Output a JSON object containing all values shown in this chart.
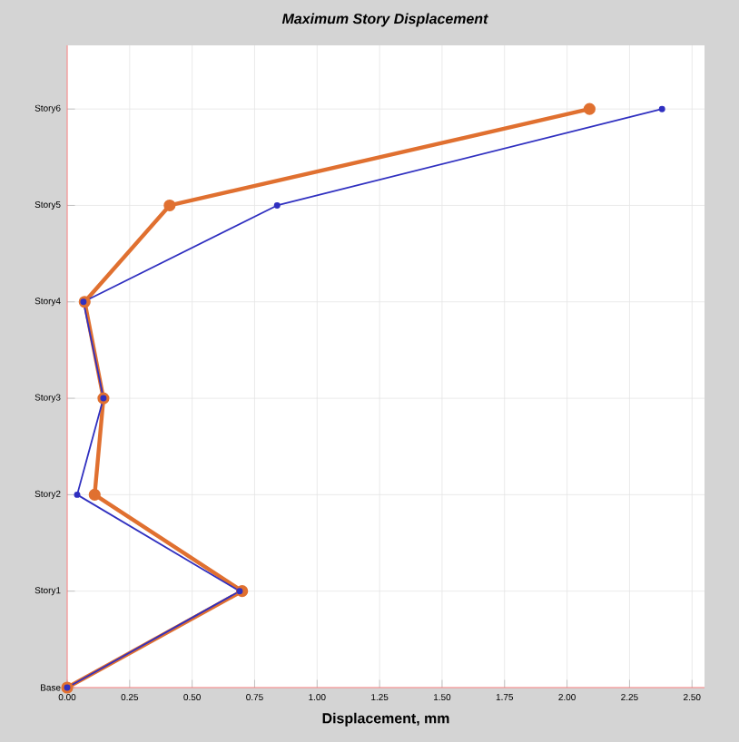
{
  "chart_data": {
    "type": "line",
    "orientation": "horizontal",
    "title": "Maximum Story Displacement",
    "xlabel": "Displacement, mm",
    "categories": [
      "Story6",
      "Story5",
      "Story4",
      "Story3",
      "Story2",
      "Story1",
      "Base"
    ],
    "series": [
      {
        "color": "#e07030",
        "values": [
          2.09,
          0.41,
          0.07,
          0.145,
          0.11,
          0.7,
          0
        ]
      },
      {
        "color": "#3030c0",
        "values": [
          2.38,
          0.84,
          0.065,
          0.145,
          0.04,
          0.69,
          0
        ]
      }
    ],
    "xlim": [
      0,
      2.55
    ],
    "xticks": [
      {
        "value": 0,
        "label": "0.00"
      },
      0.25,
      {
        "value": 0.5,
        "label": "0.50"
      },
      0.75,
      {
        "value": 1,
        "label": "1.00"
      },
      1.25,
      {
        "value": 1.5,
        "label": "1.50"
      },
      1.75,
      {
        "value": 2,
        "label": "2.00"
      },
      2.25,
      {
        "value": 2.5,
        "label": "2.50"
      }
    ],
    "grid": true,
    "marker": "circle",
    "line_style": "solid"
  }
}
